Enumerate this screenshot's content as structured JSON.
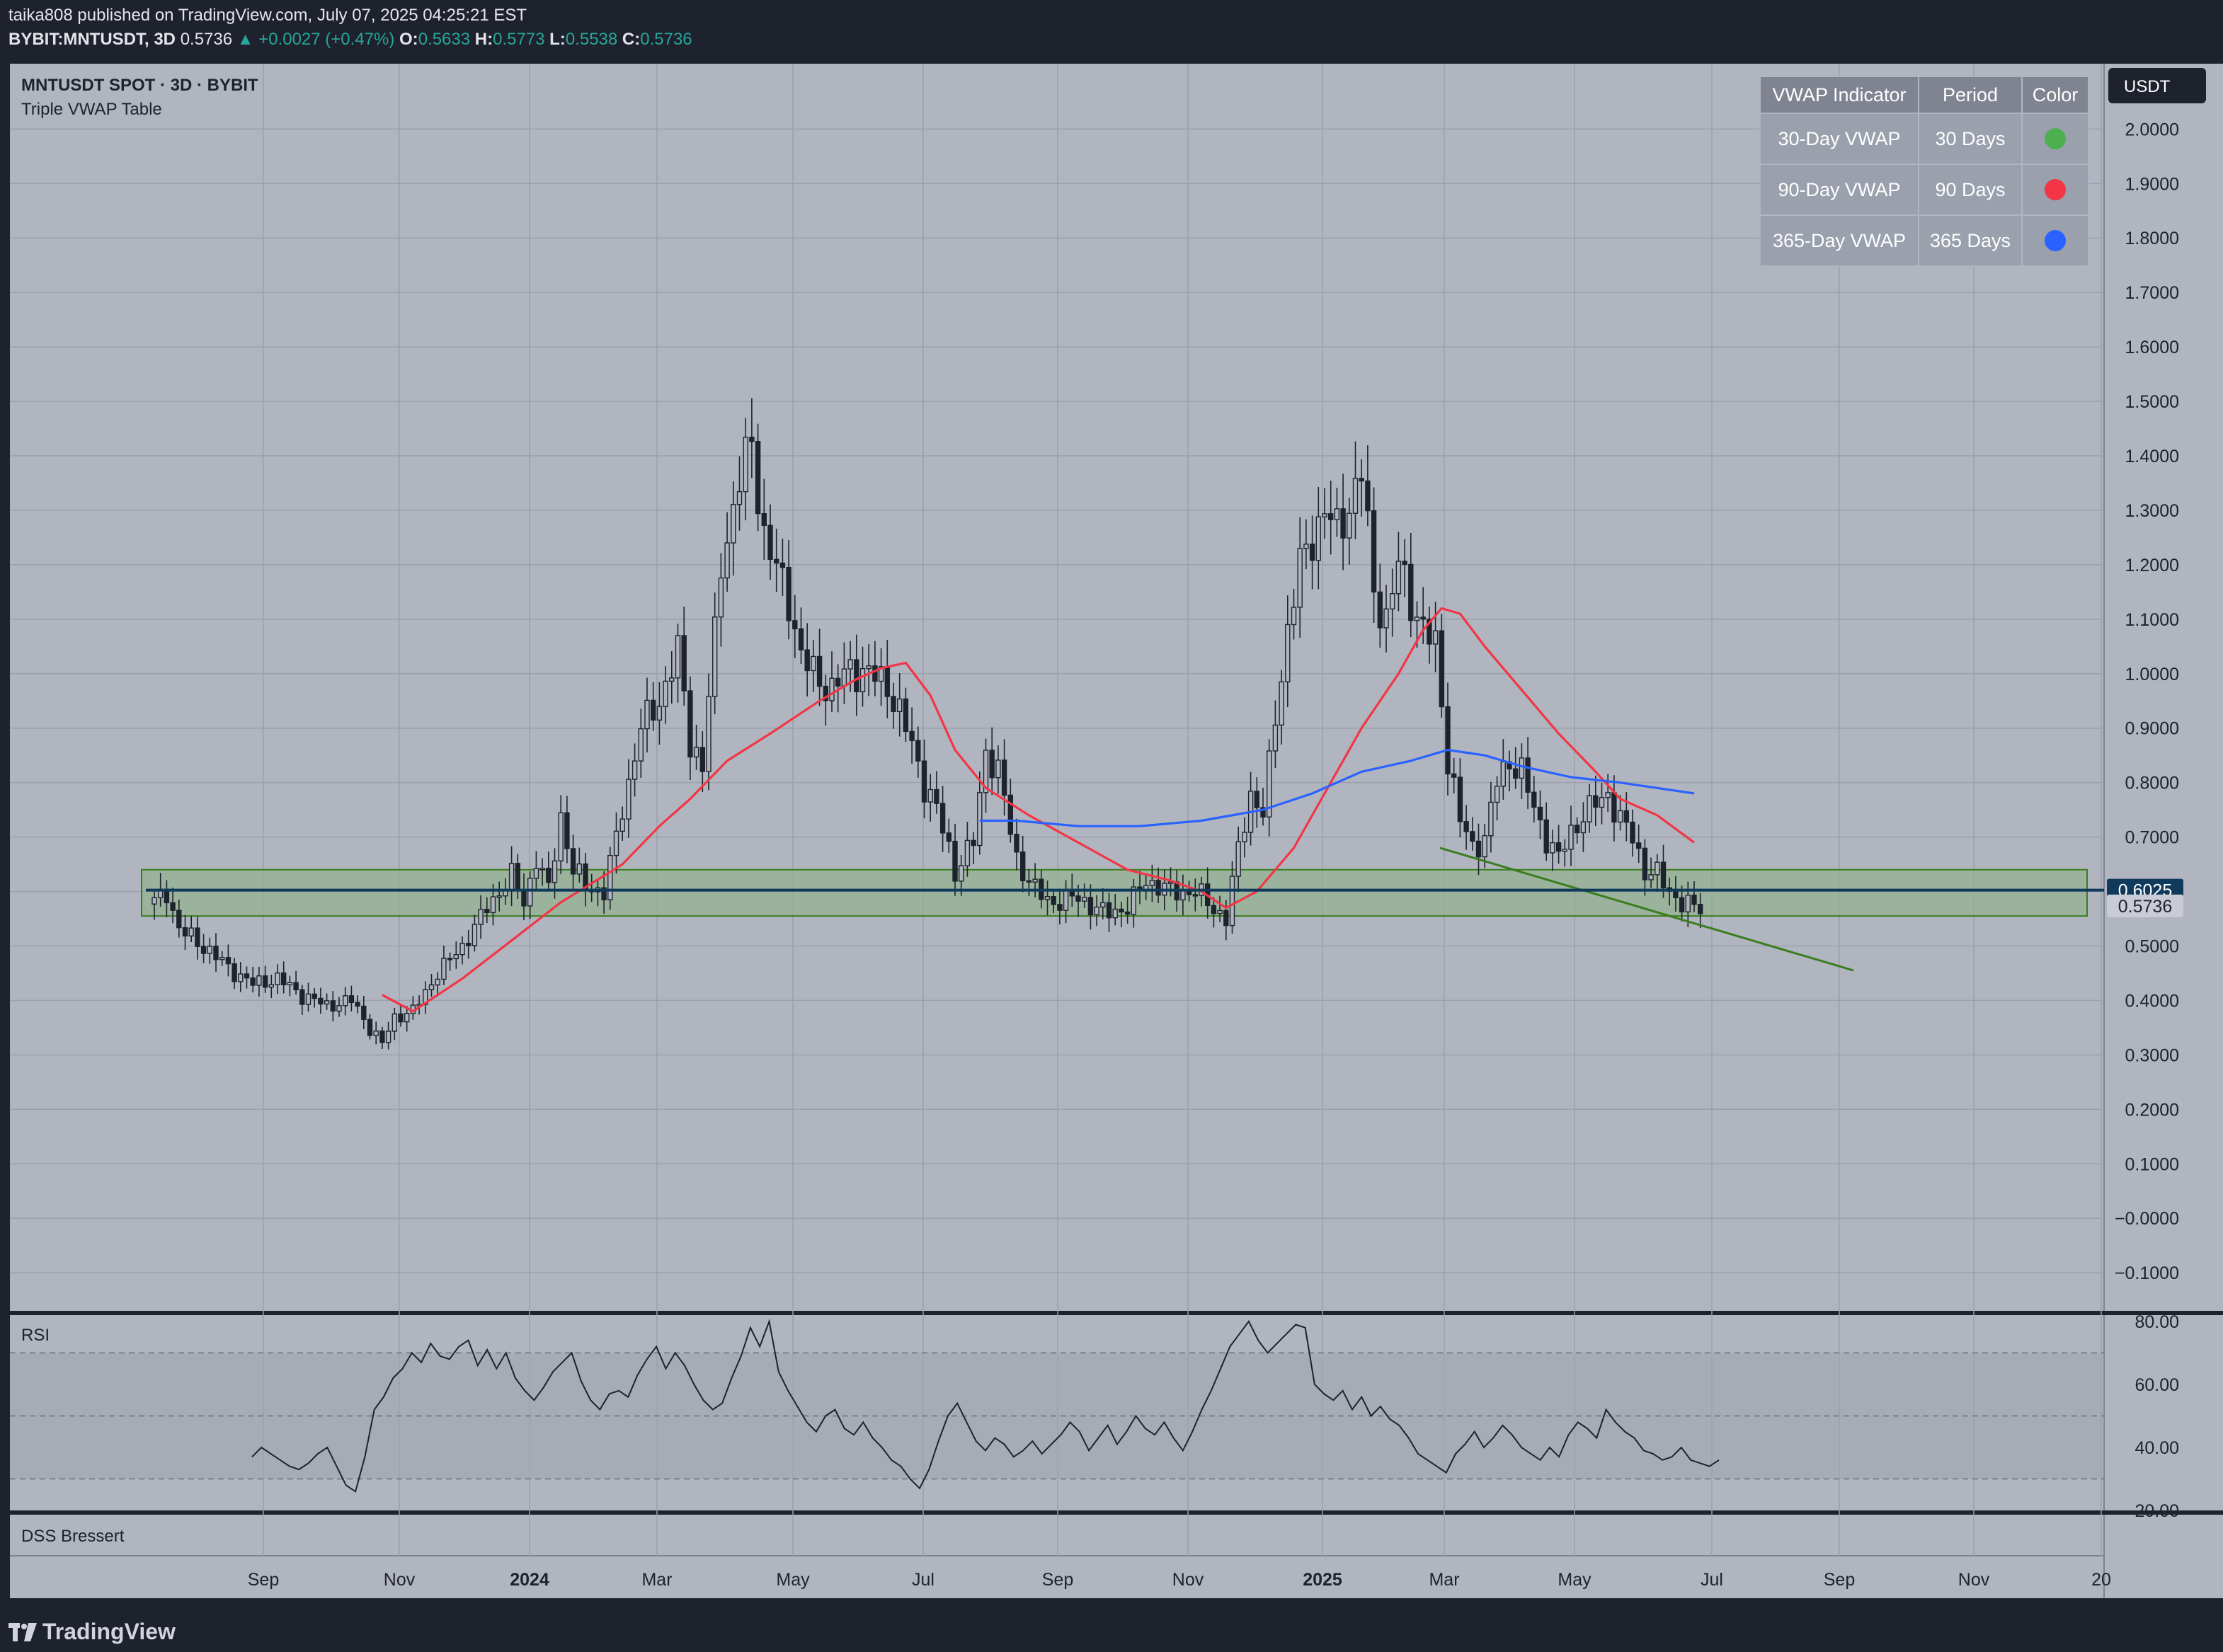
{
  "publisher_line": "taika808 published on TradingView.com, July 07, 2025 04:25:21 EST",
  "ohlc": {
    "symbol": "BYBIT:MNTUSDT, 3D",
    "last": "0.5736",
    "change": "+0.0027 (+0.47%)",
    "o_label": "O:",
    "o": "0.5633",
    "h_label": "H:",
    "h": "0.5773",
    "l_label": "L:",
    "l": "0.5538",
    "c_label": "C:",
    "c": "0.5736"
  },
  "legend": {
    "title": "MNTUSDT SPOT · 3D · BYBIT",
    "indicator": "Triple VWAP Table",
    "rsi": "RSI",
    "dss": "DSS Bressert"
  },
  "currency_button": "USDT",
  "vwap_table": {
    "headers": [
      "VWAP Indicator",
      "Period",
      "Color"
    ],
    "rows": [
      {
        "name": "30-Day VWAP",
        "period": "30 Days",
        "color": "#4caf50"
      },
      {
        "name": "90-Day VWAP",
        "period": "90 Days",
        "color": "#f23645"
      },
      {
        "name": "365-Day VWAP",
        "period": "365 Days",
        "color": "#2962ff"
      }
    ]
  },
  "price_labels": {
    "level": "0.6025",
    "last": "0.5736"
  },
  "brand": "TradingView",
  "colors": {
    "chart_bg": "#b1b5c0",
    "frame_bg": "#1e222d",
    "red_line": "#f23645",
    "blue_line": "#2962ff",
    "green_line": "#3a7d1e",
    "level_line": "#0f3a5c",
    "zone_fill": "#8fb08a",
    "candle": "#1e222d"
  },
  "chart_data": [
    {
      "type": "candlestick",
      "title": "MNTUSDT SPOT · 3D · BYBIT",
      "x_ticks": [
        "Sep",
        "Nov",
        "2024",
        "Mar",
        "May",
        "Jul",
        "Sep",
        "Nov",
        "2025",
        "Mar",
        "May",
        "Jul",
        "Sep",
        "Nov",
        "20"
      ],
      "y_ticks": [
        "2.0000",
        "1.9000",
        "1.8000",
        "1.7000",
        "1.6000",
        "1.5000",
        "1.4000",
        "1.3000",
        "1.2000",
        "1.1000",
        "1.0000",
        "0.9000",
        "0.8000",
        "0.7000",
        "0.6000",
        "0.5000",
        "0.4000",
        "0.3000",
        "0.2000",
        "0.1000",
        "−0.0000",
        "−0.1000"
      ],
      "ylim": [
        -0.17,
        2.12
      ],
      "price_anchors": [
        [
          0,
          0.58
        ],
        [
          2,
          0.6
        ],
        [
          4,
          0.53
        ],
        [
          8,
          0.5
        ],
        [
          12,
          0.46
        ],
        [
          16,
          0.43
        ],
        [
          20,
          0.44
        ],
        [
          24,
          0.41
        ],
        [
          28,
          0.39
        ],
        [
          32,
          0.4
        ],
        [
          35,
          0.35
        ],
        [
          37,
          0.32
        ],
        [
          39,
          0.37
        ],
        [
          42,
          0.38
        ],
        [
          46,
          0.45
        ],
        [
          50,
          0.5
        ],
        [
          54,
          0.57
        ],
        [
          58,
          0.63
        ],
        [
          60,
          0.58
        ],
        [
          62,
          0.66
        ],
        [
          64,
          0.6
        ],
        [
          66,
          0.74
        ],
        [
          68,
          0.64
        ],
        [
          70,
          0.61
        ],
        [
          73,
          0.6
        ],
        [
          76,
          0.75
        ],
        [
          79,
          0.9
        ],
        [
          82,
          0.95
        ],
        [
          85,
          1.04
        ],
        [
          87,
          0.88
        ],
        [
          89,
          0.83
        ],
        [
          92,
          1.2
        ],
        [
          95,
          1.35
        ],
        [
          97,
          1.43
        ],
        [
          99,
          1.25
        ],
        [
          101,
          1.19
        ],
        [
          103,
          1.14
        ],
        [
          105,
          1.03
        ],
        [
          107,
          1.0
        ],
        [
          110,
          0.97
        ],
        [
          113,
          1.01
        ],
        [
          116,
          1.0
        ],
        [
          119,
          0.98
        ],
        [
          122,
          0.9
        ],
        [
          125,
          0.8
        ],
        [
          127,
          0.75
        ],
        [
          130,
          0.64
        ],
        [
          133,
          0.69
        ],
        [
          135,
          0.86
        ],
        [
          137,
          0.82
        ],
        [
          140,
          0.66
        ],
        [
          143,
          0.6
        ],
        [
          146,
          0.58
        ],
        [
          150,
          0.59
        ],
        [
          154,
          0.56
        ],
        [
          158,
          0.57
        ],
        [
          161,
          0.62
        ],
        [
          165,
          0.6
        ],
        [
          169,
          0.6
        ],
        [
          172,
          0.57
        ],
        [
          174,
          0.55
        ],
        [
          176,
          0.68
        ],
        [
          178,
          0.78
        ],
        [
          180,
          0.74
        ],
        [
          182,
          0.92
        ],
        [
          184,
          1.08
        ],
        [
          186,
          1.2
        ],
        [
          188,
          1.25
        ],
        [
          190,
          1.3
        ],
        [
          192,
          1.26
        ],
        [
          194,
          1.31
        ],
        [
          196,
          1.37
        ],
        [
          198,
          1.15
        ],
        [
          200,
          1.1
        ],
        [
          202,
          1.2
        ],
        [
          204,
          1.14
        ],
        [
          206,
          1.08
        ],
        [
          208,
          1.05
        ],
        [
          210,
          0.85
        ],
        [
          212,
          0.73
        ],
        [
          214,
          0.68
        ],
        [
          216,
          0.7
        ],
        [
          218,
          0.8
        ],
        [
          220,
          0.84
        ],
        [
          222,
          0.82
        ],
        [
          224,
          0.75
        ],
        [
          226,
          0.7
        ],
        [
          228,
          0.66
        ],
        [
          230,
          0.71
        ],
        [
          232,
          0.74
        ],
        [
          234,
          0.76
        ],
        [
          236,
          0.78
        ],
        [
          238,
          0.73
        ],
        [
          240,
          0.7
        ],
        [
          242,
          0.64
        ],
        [
          244,
          0.63
        ],
        [
          246,
          0.6
        ],
        [
          248,
          0.58
        ],
        [
          250,
          0.57
        ]
      ],
      "series": [
        {
          "name": "90-Day VWAP",
          "color": "#f23645",
          "points": [
            [
              37,
              0.41
            ],
            [
              42,
              0.38
            ],
            [
              50,
              0.44
            ],
            [
              58,
              0.51
            ],
            [
              66,
              0.58
            ],
            [
              76,
              0.65
            ],
            [
              82,
              0.72
            ],
            [
              87,
              0.77
            ],
            [
              93,
              0.84
            ],
            [
              100,
              0.89
            ],
            [
              108,
              0.95
            ],
            [
              114,
              0.99
            ],
            [
              118,
              1.01
            ],
            [
              122,
              1.02
            ],
            [
              126,
              0.96
            ],
            [
              130,
              0.86
            ],
            [
              135,
              0.79
            ],
            [
              142,
              0.74
            ],
            [
              150,
              0.69
            ],
            [
              158,
              0.64
            ],
            [
              165,
              0.62
            ],
            [
              170,
              0.6
            ],
            [
              174,
              0.57
            ],
            [
              179,
              0.6
            ],
            [
              185,
              0.68
            ],
            [
              190,
              0.78
            ],
            [
              196,
              0.9
            ],
            [
              202,
              1.0
            ],
            [
              206,
              1.08
            ],
            [
              209,
              1.12
            ],
            [
              212,
              1.11
            ],
            [
              216,
              1.05
            ],
            [
              222,
              0.97
            ],
            [
              228,
              0.89
            ],
            [
              234,
              0.82
            ],
            [
              238,
              0.77
            ],
            [
              244,
              0.74
            ],
            [
              250,
              0.69
            ]
          ]
        },
        {
          "name": "365-Day VWAP",
          "color": "#2962ff",
          "points": [
            [
              134,
              0.73
            ],
            [
              140,
              0.73
            ],
            [
              150,
              0.72
            ],
            [
              160,
              0.72
            ],
            [
              170,
              0.73
            ],
            [
              180,
              0.75
            ],
            [
              188,
              0.78
            ],
            [
              196,
              0.82
            ],
            [
              204,
              0.84
            ],
            [
              210,
              0.86
            ],
            [
              216,
              0.85
            ],
            [
              222,
              0.83
            ],
            [
              230,
              0.81
            ],
            [
              238,
              0.8
            ],
            [
              244,
              0.79
            ],
            [
              250,
              0.78
            ]
          ]
        },
        {
          "name": "Trendline",
          "color": "#3a7d1e",
          "points": [
            [
              0,
              0.68
            ],
            [
              1,
              0.455
            ]
          ]
        }
      ],
      "levels": [
        {
          "name": "Support level",
          "value": 0.6025
        }
      ],
      "zones": [
        {
          "name": "Support zone",
          "from": 0.555,
          "to": 0.64
        }
      ]
    },
    {
      "type": "line",
      "title": "RSI",
      "y_ticks": [
        "80.00",
        "60.00",
        "40.00",
        "20.00"
      ],
      "ylim": [
        20,
        82
      ],
      "band": [
        30,
        70
      ],
      "guides": [
        30,
        50,
        70
      ],
      "values": [
        37,
        40,
        38,
        36,
        34,
        33,
        35,
        38,
        40,
        34,
        28,
        26,
        37,
        52,
        56,
        62,
        65,
        70,
        67,
        73,
        69,
        68,
        72,
        74,
        66,
        71,
        65,
        70,
        62,
        58,
        55,
        59,
        64,
        67,
        70,
        61,
        55,
        52,
        57,
        58,
        56,
        63,
        68,
        72,
        65,
        70,
        66,
        60,
        55,
        52,
        54,
        62,
        69,
        78,
        72,
        80,
        64,
        58,
        53,
        48,
        45,
        50,
        52,
        46,
        44,
        48,
        43,
        40,
        36,
        34,
        30,
        27,
        33,
        42,
        50,
        54,
        48,
        42,
        39,
        43,
        41,
        37,
        39,
        42,
        38,
        41,
        44,
        48,
        45,
        39,
        43,
        47,
        41,
        45,
        50,
        46,
        44,
        48,
        43,
        39,
        45,
        52,
        58,
        65,
        72,
        76,
        80,
        74,
        70,
        73,
        76,
        79,
        78,
        60,
        57,
        55,
        58,
        52,
        56,
        50,
        53,
        49,
        47,
        43,
        38,
        36,
        34,
        32,
        38,
        41,
        45,
        40,
        43,
        47,
        44,
        40,
        38,
        36,
        40,
        37,
        44,
        48,
        46,
        43,
        52,
        48,
        45,
        43,
        39,
        38,
        36,
        37,
        40,
        36,
        35,
        34,
        36
      ]
    }
  ]
}
